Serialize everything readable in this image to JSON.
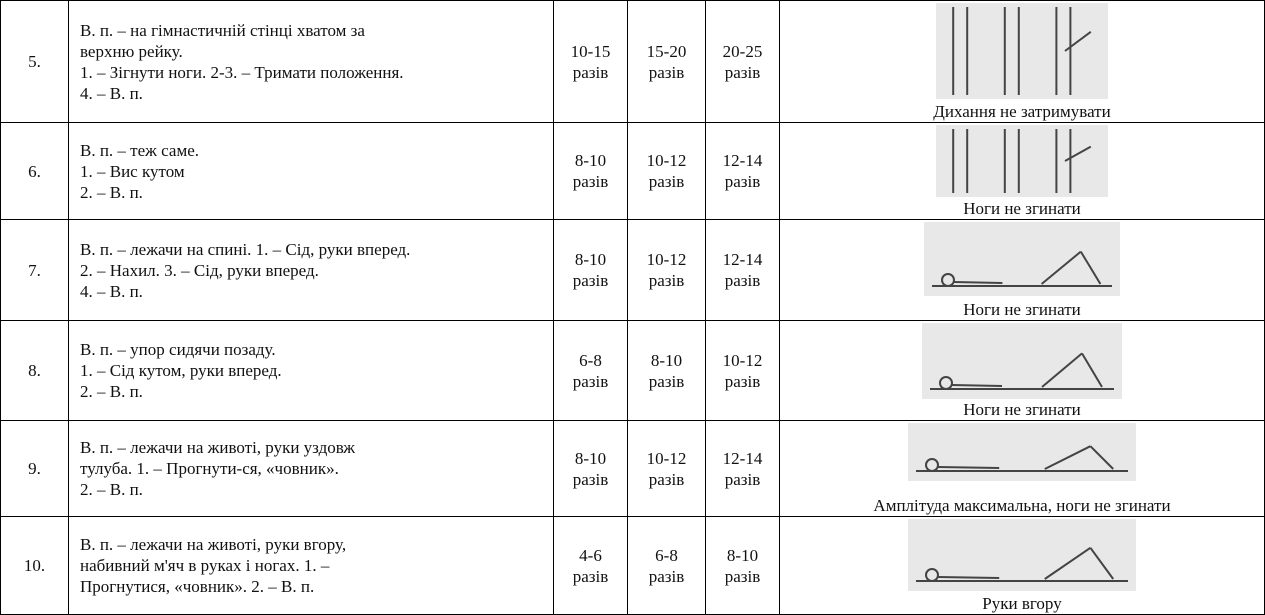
{
  "table": {
    "rows": [
      {
        "number": "5.",
        "description": [
          "В. п. – на гімнастичній стінці хватом за",
          "верхню рейку.",
          "1. – Зігнути ноги. 2-3. – Тримати положення.",
          "4. – В. п."
        ],
        "reps": [
          {
            "range": "10-15",
            "unit": "разів"
          },
          {
            "range": "15-20",
            "unit": "разів"
          },
          {
            "range": "20-25",
            "unit": "разів"
          }
        ],
        "caption": "Дихання не затримувати"
      },
      {
        "number": "6.",
        "description": [
          "В. п. – теж саме.",
          "1. – Вис кутом",
          "2. – В. п."
        ],
        "reps": [
          {
            "range": "8-10",
            "unit": "разів"
          },
          {
            "range": "10-12",
            "unit": "разів"
          },
          {
            "range": "12-14",
            "unit": "разів"
          }
        ],
        "caption": "Ноги не згинати"
      },
      {
        "number": "7.",
        "description": [
          "В. п. – лежачи на спині. 1. – Сід, руки вперед.",
          "2. – Нахил. 3. – Сід, руки вперед.",
          "4. – В. п."
        ],
        "reps": [
          {
            "range": "8-10",
            "unit": "разів"
          },
          {
            "range": "10-12",
            "unit": "разів"
          },
          {
            "range": "12-14",
            "unit": "разів"
          }
        ],
        "caption": "Ноги не згинати"
      },
      {
        "number": "8.",
        "description": [
          "В. п. – упор сидячи позаду.",
          "1. – Сід кутом, руки вперед.",
          "2. – В. п."
        ],
        "reps": [
          {
            "range": "6-8",
            "unit": "разів"
          },
          {
            "range": "8-10",
            "unit": "разів"
          },
          {
            "range": "10-12",
            "unit": "разів"
          }
        ],
        "caption": "Ноги не згинати"
      },
      {
        "number": "9.",
        "description": [
          "В. п. – лежачи на животі, руки уздовж",
          "тулуба. 1. – Прогнути-ся, «човник».",
          "2. – В. п."
        ],
        "reps": [
          {
            "range": "8-10",
            "unit": "разів"
          },
          {
            "range": "10-12",
            "unit": "разів"
          },
          {
            "range": "12-14",
            "unit": "разів"
          }
        ],
        "caption": "Амплітуда максимальна, ноги не згинати"
      },
      {
        "number": "10.",
        "description": [
          "В. п. – лежачи на животі, руки вгору,",
          "набивний м'яч в руках і ногах. 1. –",
          "Прогнутися, «човник». 2. – В. п."
        ],
        "reps": [
          {
            "range": "4-6",
            "unit": "разів"
          },
          {
            "range": "6-8",
            "unit": "разів"
          },
          {
            "range": "8-10",
            "unit": "разів"
          }
        ],
        "caption": "Руки вгору"
      }
    ]
  }
}
